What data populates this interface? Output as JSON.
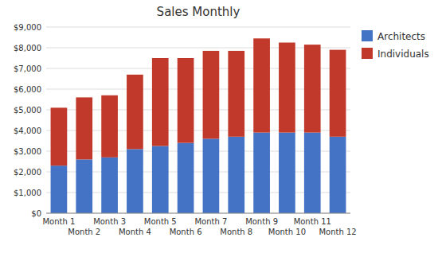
{
  "chart_data": {
    "type": "bar",
    "title": "Sales Monthly",
    "categories": [
      "Month 1",
      "Month 2",
      "Month 3",
      "Month 4",
      "Month 5",
      "Month 6",
      "Month 7",
      "Month 8",
      "Month 9",
      "Month 10",
      "Month 11",
      "Month 12"
    ],
    "series": [
      {
        "name": "Architects",
        "color": "#4472C4",
        "values": [
          2300,
          2600,
          2700,
          3100,
          3250,
          3400,
          3600,
          3700,
          3900,
          3900,
          3900,
          3700
        ]
      },
      {
        "name": "Individuals",
        "color": "#C0392B",
        "values": [
          2800,
          3000,
          3000,
          3600,
          4250,
          4100,
          4250,
          4150,
          4550,
          4350,
          4250,
          4200
        ]
      }
    ],
    "stacked": true,
    "ylim": [
      0,
      9000
    ],
    "yticks": [
      {
        "value": 0,
        "label": "$0"
      },
      {
        "value": 1000,
        "label": "$1,000"
      },
      {
        "value": 2000,
        "label": "$2,000"
      },
      {
        "value": 3000,
        "label": "$3,000"
      },
      {
        "value": 4000,
        "label": "$4,000"
      },
      {
        "value": 5000,
        "label": "$5,000"
      },
      {
        "value": 6000,
        "label": "$6,000"
      },
      {
        "value": 7000,
        "label": "$7,000"
      },
      {
        "value": 8000,
        "label": "$8,000"
      },
      {
        "value": 9000,
        "label": "$9,000"
      }
    ],
    "grid": true,
    "legend": "right"
  }
}
